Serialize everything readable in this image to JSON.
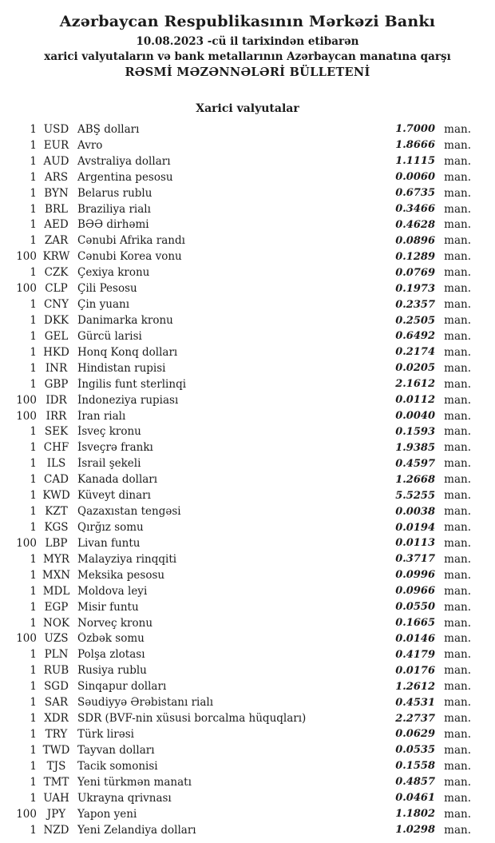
{
  "header": {
    "bank_name": "Azərbaycan Respublikasının Mərkəzi Bankı",
    "date_line": "10.08.2023 -cü il tarixindən etibarən",
    "subtitle": "xarici valyutaların və bank metallarının Azərbaycan manatına qarşı",
    "bulletin_title": "RƏSMİ MƏZƏNNƏLƏRİ BÜLLETENİ"
  },
  "section_title": "Xarici valyutalar",
  "colors": {
    "text": "#1b1b1b",
    "background": "#ffffff"
  },
  "table": {
    "unit_label": "man.",
    "rows": [
      {
        "qty": "1",
        "code": "USD",
        "name": "ABŞ dolları",
        "rate": "1.7000"
      },
      {
        "qty": "1",
        "code": "EUR",
        "name": "Avro",
        "rate": "1.8666"
      },
      {
        "qty": "1",
        "code": "AUD",
        "name": "Avstraliya dolları",
        "rate": "1.1115"
      },
      {
        "qty": "1",
        "code": "ARS",
        "name": "Argentina pesosu",
        "rate": "0.0060"
      },
      {
        "qty": "1",
        "code": "BYN",
        "name": "Belarus rublu",
        "rate": "0.6735"
      },
      {
        "qty": "1",
        "code": "BRL",
        "name": "Braziliya rialı",
        "rate": "0.3466"
      },
      {
        "qty": "1",
        "code": "AED",
        "name": "BƏƏ dirhəmi",
        "rate": "0.4628"
      },
      {
        "qty": "1",
        "code": "ZAR",
        "name": "Cənubi Afrika randı",
        "rate": "0.0896"
      },
      {
        "qty": "100",
        "code": "KRW",
        "name": "Cənubi Korea vonu",
        "rate": "0.1289"
      },
      {
        "qty": "1",
        "code": "CZK",
        "name": "Çexiya kronu",
        "rate": "0.0769"
      },
      {
        "qty": "100",
        "code": "CLP",
        "name": "Çili Pesosu",
        "rate": "0.1973"
      },
      {
        "qty": "1",
        "code": "CNY",
        "name": "Çin yuanı",
        "rate": "0.2357"
      },
      {
        "qty": "1",
        "code": "DKK",
        "name": "Danimarka kronu",
        "rate": "0.2505"
      },
      {
        "qty": "1",
        "code": "GEL",
        "name": "Gürcü larisi",
        "rate": "0.6492"
      },
      {
        "qty": "1",
        "code": "HKD",
        "name": "Honq Konq dolları",
        "rate": "0.2174"
      },
      {
        "qty": "1",
        "code": "INR",
        "name": "Hindistan rupisi",
        "rate": "0.0205"
      },
      {
        "qty": "1",
        "code": "GBP",
        "name": "İngilis funt sterlinqi",
        "rate": "2.1612"
      },
      {
        "qty": "100",
        "code": "IDR",
        "name": "İndoneziya rupiası",
        "rate": "0.0112"
      },
      {
        "qty": "100",
        "code": "IRR",
        "name": "İran rialı",
        "rate": "0.0040"
      },
      {
        "qty": "1",
        "code": "SEK",
        "name": "İsveç kronu",
        "rate": "0.1593"
      },
      {
        "qty": "1",
        "code": "CHF",
        "name": "İsveçrə frankı",
        "rate": "1.9385"
      },
      {
        "qty": "1",
        "code": "ILS",
        "name": "İsrail şekeli",
        "rate": "0.4597"
      },
      {
        "qty": "1",
        "code": "CAD",
        "name": "Kanada dolları",
        "rate": "1.2668"
      },
      {
        "qty": "1",
        "code": "KWD",
        "name": "Küveyt dinarı",
        "rate": "5.5255"
      },
      {
        "qty": "1",
        "code": "KZT",
        "name": "Qazaxıstan tengəsi",
        "rate": "0.0038"
      },
      {
        "qty": "1",
        "code": "KGS",
        "name": "Qırğız somu",
        "rate": "0.0194"
      },
      {
        "qty": "100",
        "code": "LBP",
        "name": "Livan funtu",
        "rate": "0.0113"
      },
      {
        "qty": "1",
        "code": "MYR",
        "name": "Malayziya rinqqiti",
        "rate": "0.3717"
      },
      {
        "qty": "1",
        "code": "MXN",
        "name": "Meksika pesosu",
        "rate": "0.0996"
      },
      {
        "qty": "1",
        "code": "MDL",
        "name": "Moldova leyi",
        "rate": "0.0966"
      },
      {
        "qty": "1",
        "code": "EGP",
        "name": "Misir funtu",
        "rate": "0.0550"
      },
      {
        "qty": "1",
        "code": "NOK",
        "name": "Norveç kronu",
        "rate": "0.1665"
      },
      {
        "qty": "100",
        "code": "UZS",
        "name": "Özbək somu",
        "rate": "0.0146"
      },
      {
        "qty": "1",
        "code": "PLN",
        "name": "Polşa zlotası",
        "rate": "0.4179"
      },
      {
        "qty": "1",
        "code": "RUB",
        "name": "Rusiya rublu",
        "rate": "0.0176"
      },
      {
        "qty": "1",
        "code": "SGD",
        "name": "Sinqapur dolları",
        "rate": "1.2612"
      },
      {
        "qty": "1",
        "code": "SAR",
        "name": "Səudiyyə Ərəbistanı rialı",
        "rate": "0.4531"
      },
      {
        "qty": "1",
        "code": "XDR",
        "name": "SDR (BVF-nin xüsusi borcalma hüquqları)",
        "rate": "2.2737"
      },
      {
        "qty": "1",
        "code": "TRY",
        "name": "Türk lirəsi",
        "rate": "0.0629"
      },
      {
        "qty": "1",
        "code": "TWD",
        "name": "Tayvan dolları",
        "rate": "0.0535"
      },
      {
        "qty": "1",
        "code": "TJS",
        "name": "Tacik somonisi",
        "rate": "0.1558"
      },
      {
        "qty": "1",
        "code": "TMT",
        "name": "Yeni türkmən manatı",
        "rate": "0.4857"
      },
      {
        "qty": "1",
        "code": "UAH",
        "name": "Ukrayna qrivnası",
        "rate": "0.0461"
      },
      {
        "qty": "100",
        "code": "JPY",
        "name": "Yapon yeni",
        "rate": "1.1802"
      },
      {
        "qty": "1",
        "code": "NZD",
        "name": "Yeni Zelandiya dolları",
        "rate": "1.0298"
      }
    ]
  }
}
